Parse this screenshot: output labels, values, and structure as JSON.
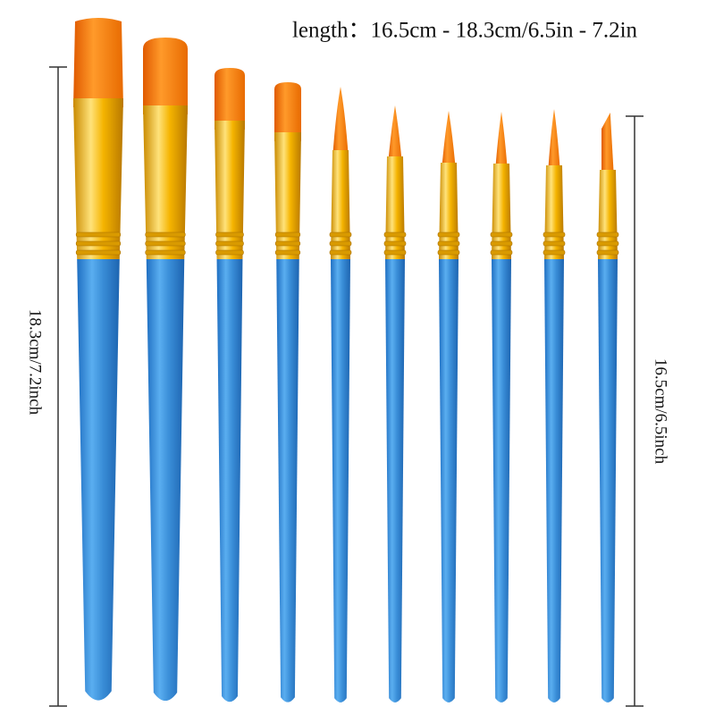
{
  "title": "length：16.5cm - 18.3cm/6.5in - 7.2in",
  "left_label": "18.3cm/7.2inch",
  "right_label": "16.5cm/6.5inch"
}
